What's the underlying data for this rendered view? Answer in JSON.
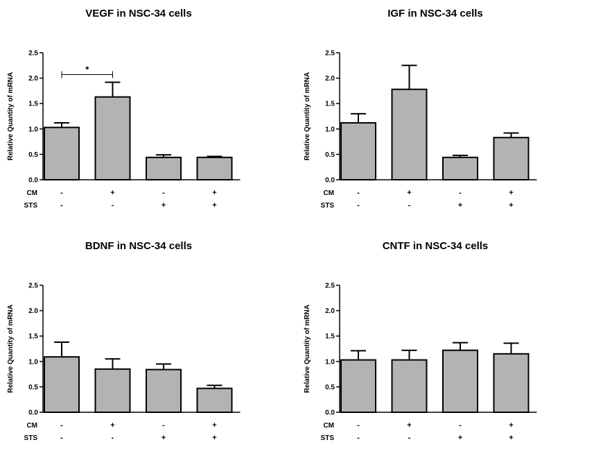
{
  "chart_data": [
    {
      "type": "bar",
      "title": "VEGF in NSC-34 cells",
      "ylabel": "Relative Quantity of mRNA",
      "ylim": [
        0,
        2.5
      ],
      "yticks": [
        "0.0",
        "0.5",
        "1.0",
        "1.5",
        "2.0",
        "2.5"
      ],
      "conditions": [
        {
          "label": "CM",
          "signs": [
            "-",
            "+",
            "-",
            "+"
          ]
        },
        {
          "label": "STS",
          "signs": [
            "-",
            "-",
            "+",
            "+"
          ]
        }
      ],
      "values": [
        1.03,
        1.63,
        0.44,
        0.44
      ],
      "errors": [
        0.09,
        0.29,
        0.05,
        0.02
      ],
      "significance": {
        "from": 0,
        "to": 1,
        "label": "*",
        "y": 2.07
      },
      "bar_color": "#b3b3b3"
    },
    {
      "type": "bar",
      "title": "IGF in NSC-34 cells",
      "ylabel": "Relative Quantity of mRNA",
      "ylim": [
        0,
        2.5
      ],
      "yticks": [
        "0.0",
        "0.5",
        "1.0",
        "1.5",
        "2.0",
        "2.5"
      ],
      "conditions": [
        {
          "label": "CM",
          "signs": [
            "-",
            "+",
            "-",
            "+"
          ]
        },
        {
          "label": "STS",
          "signs": [
            "-",
            "-",
            "+",
            "+"
          ]
        }
      ],
      "values": [
        1.12,
        1.78,
        0.44,
        0.83
      ],
      "errors": [
        0.18,
        0.47,
        0.04,
        0.09
      ],
      "bar_color": "#b3b3b3"
    },
    {
      "type": "bar",
      "title": "BDNF in NSC-34 cells",
      "ylabel": "Relative Quantity of mRNA",
      "ylim": [
        0,
        2.5
      ],
      "yticks": [
        "0.0",
        "0.5",
        "1.0",
        "1.5",
        "2.0",
        "2.5"
      ],
      "conditions": [
        {
          "label": "CM",
          "signs": [
            "-",
            "+",
            "-",
            "+"
          ]
        },
        {
          "label": "STS",
          "signs": [
            "-",
            "-",
            "+",
            "+"
          ]
        }
      ],
      "values": [
        1.09,
        0.85,
        0.84,
        0.47
      ],
      "errors": [
        0.29,
        0.2,
        0.11,
        0.06
      ],
      "bar_color": "#b3b3b3"
    },
    {
      "type": "bar",
      "title": "CNTF in NSC-34 cells",
      "ylabel": "Relative Quantity of mRNA",
      "ylim": [
        0,
        2.5
      ],
      "yticks": [
        "0.0",
        "0.5",
        "1.0",
        "1.5",
        "2.0",
        "2.5"
      ],
      "conditions": [
        {
          "label": "CM",
          "signs": [
            "-",
            "+",
            "-",
            "+"
          ]
        },
        {
          "label": "STS",
          "signs": [
            "-",
            "-",
            "+",
            "+"
          ]
        }
      ],
      "values": [
        1.03,
        1.03,
        1.22,
        1.15
      ],
      "errors": [
        0.18,
        0.19,
        0.15,
        0.21
      ],
      "bar_color": "#b3b3b3"
    }
  ]
}
